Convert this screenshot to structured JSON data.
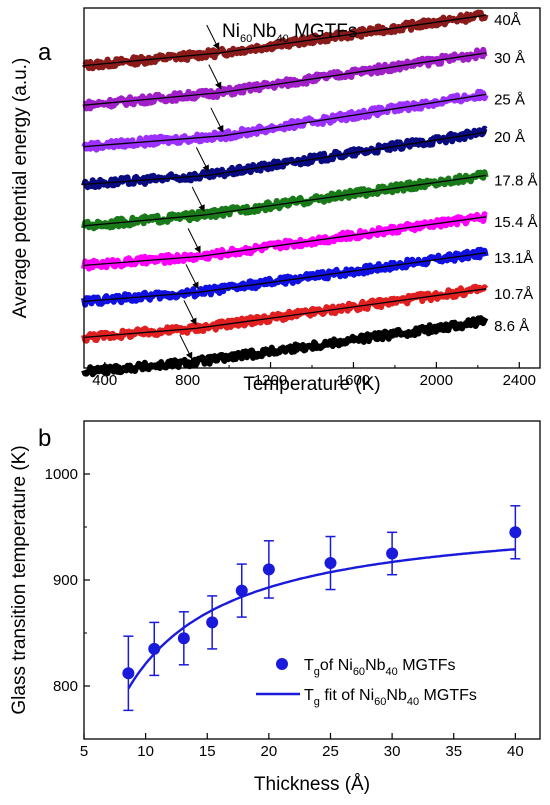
{
  "chart_data": [
    {
      "panel": "a",
      "type": "line",
      "title": "Ni60Nb40 MGTFs",
      "title_parts": {
        "a": "Ni",
        "b": "60",
        "c": "Nb",
        "d": "40",
        "e": " MGTFs"
      },
      "xlabel": "Temperature (K)",
      "ylabel": "Average potential energy (a.u.)",
      "xlim": [
        300,
        2500
      ],
      "ylim": [
        0,
        100
      ],
      "xticks": [
        400,
        800,
        1200,
        1600,
        2000,
        2400
      ],
      "yticks_labeled": false,
      "grid": false,
      "series": [
        {
          "name": "40Å",
          "color": "#8b1a1a",
          "marker": "star",
          "y_start": 84.0,
          "knee_T": 950,
          "knee_y": 87.5,
          "y_end": 98.0
        },
        {
          "name": "30 Å",
          "color": "#a020c8",
          "marker": "triangle",
          "y_start": 73.0,
          "knee_T": 960,
          "knee_y": 76.5,
          "y_end": 87.5
        },
        {
          "name": "25 Å",
          "color": "#9b30ff",
          "marker": "diamond",
          "y_start": 61.5,
          "knee_T": 970,
          "knee_y": 64.5,
          "y_end": 76.0
        },
        {
          "name": "20 Å",
          "color": "#0a0a80",
          "marker": "square",
          "y_start": 51.0,
          "knee_T": 900,
          "knee_y": 53.5,
          "y_end": 65.5
        },
        {
          "name": "17.8 Å",
          "color": "#1a7a1a",
          "marker": "triangle",
          "y_start": 39.5,
          "knee_T": 880,
          "knee_y": 42.5,
          "y_end": 53.5
        },
        {
          "name": "15.4 Å",
          "color": "#ff00ff",
          "marker": "triangle",
          "y_start": 28.5,
          "knee_T": 860,
          "knee_y": 31.0,
          "y_end": 42.0
        },
        {
          "name": "13.1Å",
          "color": "#1010e0",
          "marker": "triangle",
          "y_start": 18.5,
          "knee_T": 850,
          "knee_y": 21.0,
          "y_end": 32.0
        },
        {
          "name": "10.7Å",
          "color": "#e02020",
          "marker": "circle",
          "y_start": 8.5,
          "knee_T": 840,
          "knee_y": 11.0,
          "y_end": 22.0
        },
        {
          "name": "8.6 Å",
          "color": "#000000",
          "marker": "square",
          "y_start": -1.0,
          "knee_T": 820,
          "knee_y": 1.5,
          "y_end": 13.0
        }
      ],
      "arrows_at_T": [
        950,
        960,
        970,
        900,
        880,
        860,
        850,
        840,
        820
      ],
      "x_end": 2240
    },
    {
      "panel": "b",
      "type": "scatter",
      "xlabel": "Thickness (Å)",
      "ylabel": "Glass transition temperature (K)",
      "xlim": [
        5,
        42
      ],
      "ylim": [
        750,
        1050
      ],
      "xticks": [
        5,
        10,
        15,
        20,
        25,
        30,
        35,
        40
      ],
      "yticks": [
        800,
        900,
        1000
      ],
      "grid": false,
      "color": "#1a1adc",
      "series": [
        {
          "name": "Tg of Ni60Nb40 MGTFs",
          "x": [
            8.6,
            10.7,
            13.1,
            15.4,
            17.8,
            20,
            25,
            30,
            40
          ],
          "y": [
            812,
            835,
            845,
            860,
            890,
            910,
            916,
            925,
            945
          ],
          "err": [
            35,
            25,
            25,
            25,
            25,
            27,
            25,
            20,
            25
          ]
        },
        {
          "name": "Tg fit of Ni60Nb40 MGTFs",
          "fit": {
            "Tinf": 965,
            "A": 1440,
            "n": 1.0
          },
          "x_range": [
            8.6,
            40
          ]
        }
      ],
      "legend": {
        "position": "bottom-right",
        "entry1": {
          "a": "T",
          "b": "g",
          "c": "of Ni",
          "d": "60",
          "e": "Nb",
          "f": "40",
          "g": " MGTFs"
        },
        "entry2": {
          "a": "T",
          "b": "g",
          "c": " fit of  Ni",
          "d": "60",
          "e": "Nb",
          "f": "40",
          "g": " MGTFs"
        }
      }
    }
  ]
}
